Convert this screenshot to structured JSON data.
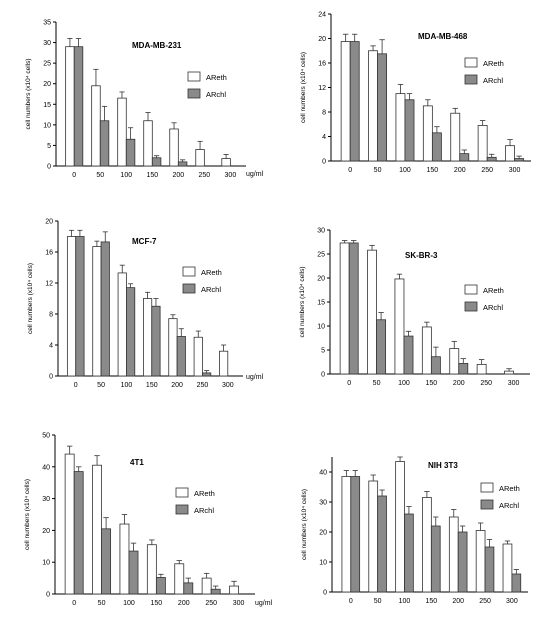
{
  "colors": {
    "areth_fill": "#ffffff",
    "archl_fill": "#8a8a8a",
    "stroke": "#333333",
    "axis": "#000000"
  },
  "chart_data": [
    {
      "type": "bar",
      "title": "MDA-MB-231",
      "ylabel": "cell numbers (x10⁴ cells)",
      "xunit": "ug/ml",
      "categories": [
        "0",
        "50",
        "100",
        "150",
        "200",
        "250",
        "300"
      ],
      "ylim": [
        0,
        35
      ],
      "yticks": [
        0,
        5,
        10,
        15,
        20,
        25,
        30,
        35
      ],
      "series": [
        {
          "name": "AReth",
          "values": [
            29,
            19.5,
            16.5,
            11,
            9,
            4,
            1.8
          ],
          "errors": [
            2,
            4,
            1.5,
            2,
            1.5,
            2,
            1
          ]
        },
        {
          "name": "ARchl",
          "values": [
            29,
            11,
            6.5,
            2,
            1,
            null,
            null
          ],
          "errors": [
            2,
            3.5,
            2.8,
            0.5,
            0.5,
            null,
            null
          ]
        }
      ]
    },
    {
      "type": "bar",
      "title": "MDA-MB-468",
      "ylabel": "cell numbers (x10⁴ cells)",
      "xunit": "ug/ml",
      "categories": [
        "0",
        "50",
        "100",
        "150",
        "200",
        "250",
        "300"
      ],
      "ylim": [
        0,
        24
      ],
      "yticks": [
        0,
        4,
        8,
        12,
        16,
        20,
        24
      ],
      "series": [
        {
          "name": "AReth",
          "values": [
            19.5,
            18,
            11,
            9,
            7.8,
            5.8,
            2.5
          ],
          "errors": [
            1.2,
            0.8,
            1.5,
            1,
            0.8,
            0.8,
            1
          ]
        },
        {
          "name": "ARchl",
          "values": [
            19.5,
            17.5,
            10,
            4.6,
            1.2,
            0.6,
            0.4
          ],
          "errors": [
            1.2,
            2.3,
            1,
            1,
            0.6,
            0.5,
            0.4
          ]
        }
      ]
    },
    {
      "type": "bar",
      "title": "MCF-7",
      "ylabel": "cell numbers (x10⁴ cells)",
      "xunit": "ug/ml",
      "categories": [
        "0",
        "50",
        "100",
        "150",
        "200",
        "250",
        "300"
      ],
      "ylim": [
        0,
        20
      ],
      "yticks": [
        0,
        4,
        8,
        12,
        16,
        20
      ],
      "series": [
        {
          "name": "AReth",
          "values": [
            18,
            16.7,
            13.3,
            10,
            7.4,
            5,
            3.2
          ],
          "errors": [
            0.8,
            0.7,
            1,
            0.8,
            0.5,
            0.8,
            0.8
          ]
        },
        {
          "name": "ARchl",
          "values": [
            18,
            17.3,
            11.4,
            9,
            5.1,
            0.4,
            null
          ],
          "errors": [
            0.8,
            1.3,
            0.5,
            1,
            1,
            0.3,
            null
          ]
        }
      ]
    },
    {
      "type": "bar",
      "title": "SK-BR-3",
      "ylabel": "cell numbers (x10⁴ cells)",
      "xunit": "ug/ml",
      "categories": [
        "0",
        "50",
        "100",
        "150",
        "200",
        "250",
        "300"
      ],
      "ylim": [
        0,
        30
      ],
      "yticks": [
        0,
        5,
        10,
        15,
        20,
        25,
        30
      ],
      "series": [
        {
          "name": "AReth",
          "values": [
            27.3,
            25.8,
            19.8,
            9.8,
            5.3,
            2,
            0.6
          ],
          "errors": [
            0.5,
            1,
            1,
            1,
            1.5,
            1,
            0.5
          ]
        },
        {
          "name": "ARchl",
          "values": [
            27.3,
            11.3,
            7.9,
            3.6,
            2.2,
            null,
            null
          ],
          "errors": [
            0.5,
            1.5,
            1,
            2,
            1,
            null,
            null
          ]
        }
      ]
    },
    {
      "type": "bar",
      "title": "4T1",
      "ylabel": "cell numbers (x10⁴ cells)",
      "xunit": "ug/ml",
      "categories": [
        "0",
        "50",
        "100",
        "150",
        "200",
        "250",
        "300"
      ],
      "ylim": [
        0,
        50
      ],
      "yticks": [
        0,
        10,
        20,
        30,
        40,
        50
      ],
      "series": [
        {
          "name": "AReth",
          "values": [
            44,
            40.5,
            22,
            15.5,
            9.5,
            5,
            2.5
          ],
          "errors": [
            2.5,
            3,
            3,
            1.5,
            1,
            1.5,
            1.5
          ]
        },
        {
          "name": "ARchl",
          "values": [
            38.5,
            20.5,
            13.5,
            5.2,
            3.5,
            1.5,
            null
          ],
          "errors": [
            1.5,
            3.5,
            2.5,
            1,
            1.5,
            1,
            null
          ]
        }
      ]
    },
    {
      "type": "bar",
      "title": "NIH 3T3",
      "ylabel": "cell numbers (x10⁴ cells)",
      "xunit": "ug/ml",
      "categories": [
        "0",
        "50",
        "100",
        "150",
        "200",
        "250",
        "300"
      ],
      "ylim": [
        0,
        45
      ],
      "yticks": [
        0,
        10,
        20,
        30,
        40
      ],
      "series": [
        {
          "name": "AReth",
          "values": [
            38.5,
            37,
            43.5,
            31.5,
            25,
            20.5,
            16
          ],
          "errors": [
            2,
            2,
            1.5,
            2,
            2.5,
            2.5,
            1
          ]
        },
        {
          "name": "ARchl",
          "values": [
            38.5,
            32,
            26,
            22,
            20,
            15,
            6
          ],
          "errors": [
            2,
            2,
            2.5,
            3,
            2,
            2.5,
            1.5
          ]
        }
      ]
    }
  ]
}
